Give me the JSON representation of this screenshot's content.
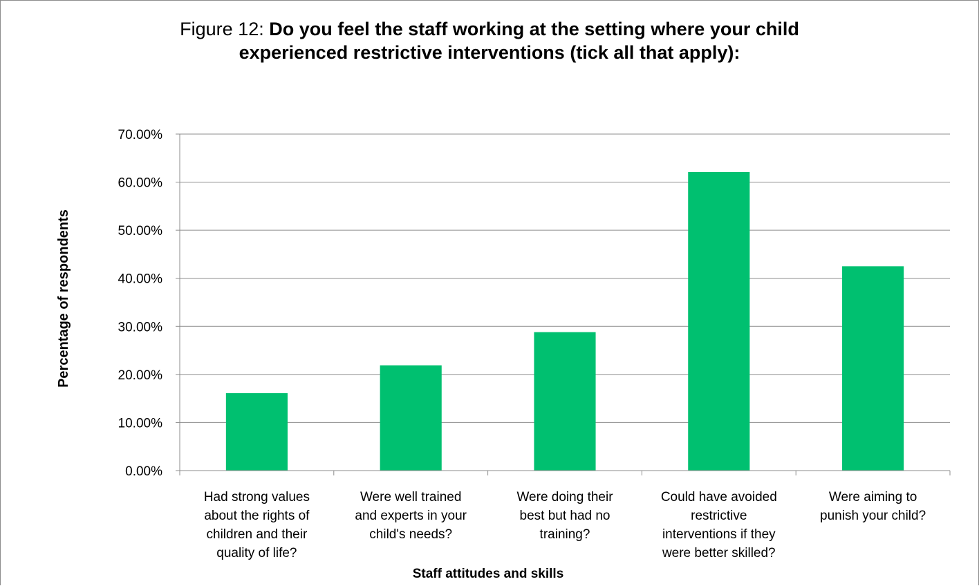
{
  "chart_data": {
    "type": "bar",
    "title_prefix": "Figure 12: ",
    "title": "Do you feel the staff working at the setting where your child experienced restrictive interventions (tick all that apply):",
    "title_lines": [
      "Do you feel the staff working at the setting where your child",
      "experienced restrictive interventions (tick all that apply):"
    ],
    "xlabel": "Staff attitudes and skills",
    "ylabel": "Percentage of respondents",
    "categories": [
      "Had strong values about the rights of children and their quality of life?",
      "Were well trained and experts in your child's needs?",
      "Were doing their best but had no training?",
      "Could have avoided restrictive interventions if they were better skilled?",
      "Were aiming to punish your child?"
    ],
    "category_lines": [
      [
        "Had strong values",
        "about the rights of",
        "children and their",
        "quality of life?"
      ],
      [
        "Were well trained",
        "and experts in your",
        "child's needs?"
      ],
      [
        "Were doing their",
        "best but had no",
        "training?"
      ],
      [
        "Could have avoided",
        "restrictive",
        "interventions if they",
        "were better skilled?"
      ],
      [
        "Were aiming to",
        "punish your child?"
      ]
    ],
    "values": [
      16.1,
      21.9,
      28.8,
      62.1,
      42.5
    ],
    "ylim": [
      0,
      70
    ],
    "ytick_step": 10,
    "ytick_labels": [
      "0.00%",
      "10.00%",
      "20.00%",
      "30.00%",
      "40.00%",
      "50.00%",
      "60.00%",
      "70.00%"
    ],
    "grid": true,
    "legend": "none",
    "bar_color": "#00c070",
    "grid_color": "#8c8c8c"
  }
}
